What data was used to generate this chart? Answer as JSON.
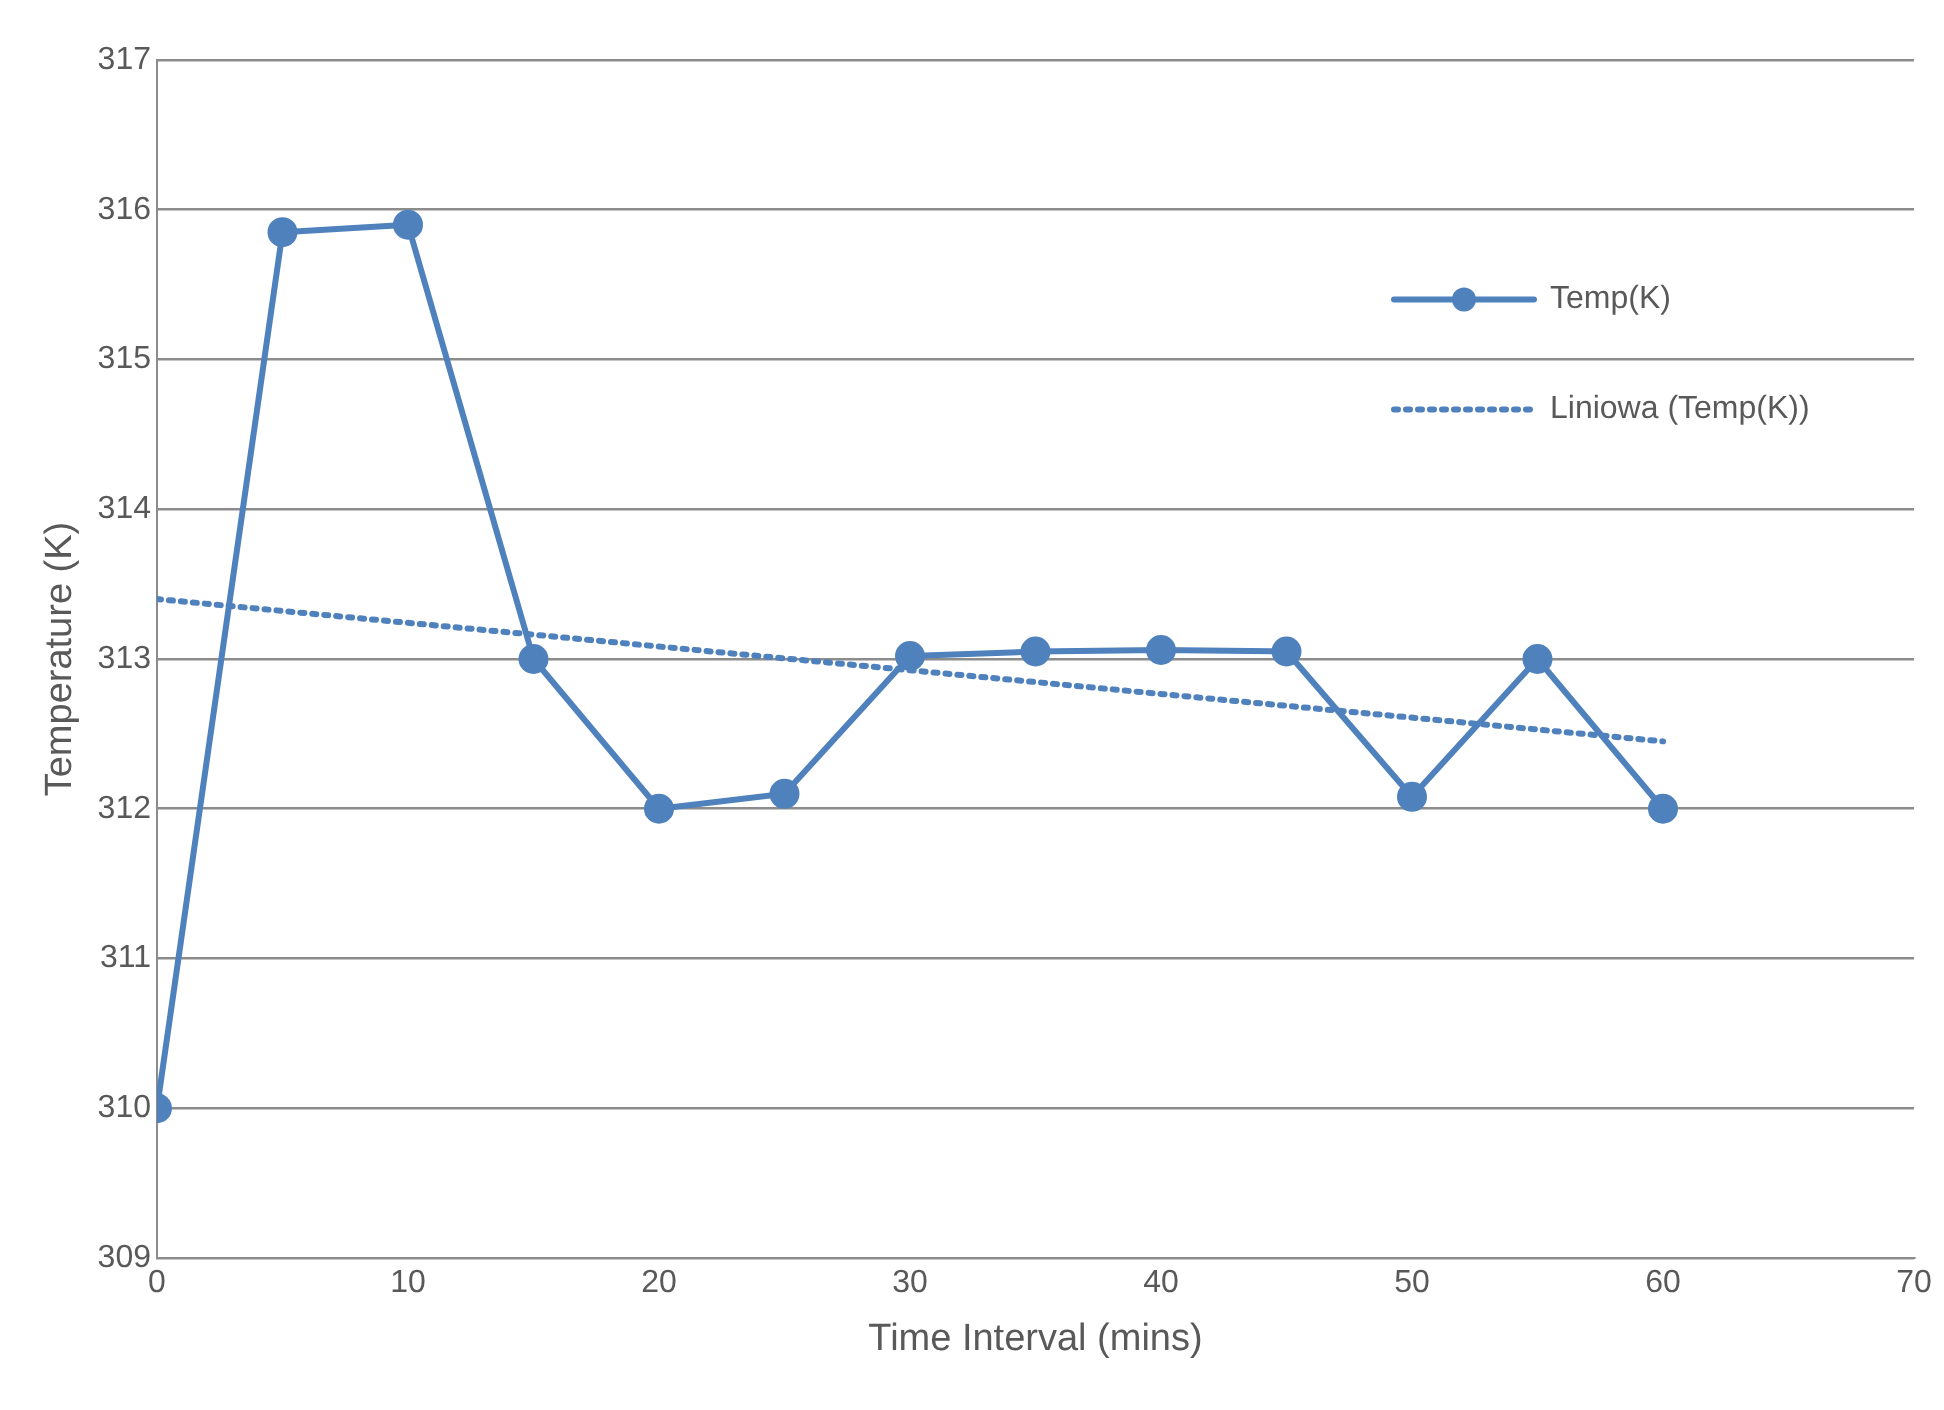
{
  "chart_data": {
    "type": "line",
    "xlabel": "Time Interval (mins)",
    "ylabel": "Temperature (K)",
    "x": [
      0,
      5,
      10,
      15,
      20,
      25,
      30,
      35,
      40,
      45,
      50,
      55,
      60
    ],
    "series": [
      {
        "name": "Temp(K)",
        "color": "#4f81bd",
        "marker": "circle",
        "line_style": "solid",
        "values": [
          310,
          315.85,
          315.9,
          313,
          312,
          312.1,
          313.02,
          313.05,
          313.06,
          313.05,
          312.08,
          313,
          312
        ]
      },
      {
        "name": "Liniowa (Temp(K))",
        "color": "#4f81bd",
        "marker": "none",
        "line_style": "dotted",
        "x": [
          0,
          60
        ],
        "values": [
          313.4,
          312.45
        ]
      }
    ],
    "xlim": [
      0,
      70
    ],
    "xticks": [
      0,
      10,
      20,
      30,
      40,
      50,
      60,
      70
    ],
    "ylim": [
      309,
      317
    ],
    "yticks": [
      309,
      310,
      311,
      312,
      313,
      314,
      315,
      316,
      317
    ],
    "grid": "y",
    "legend": "right"
  }
}
